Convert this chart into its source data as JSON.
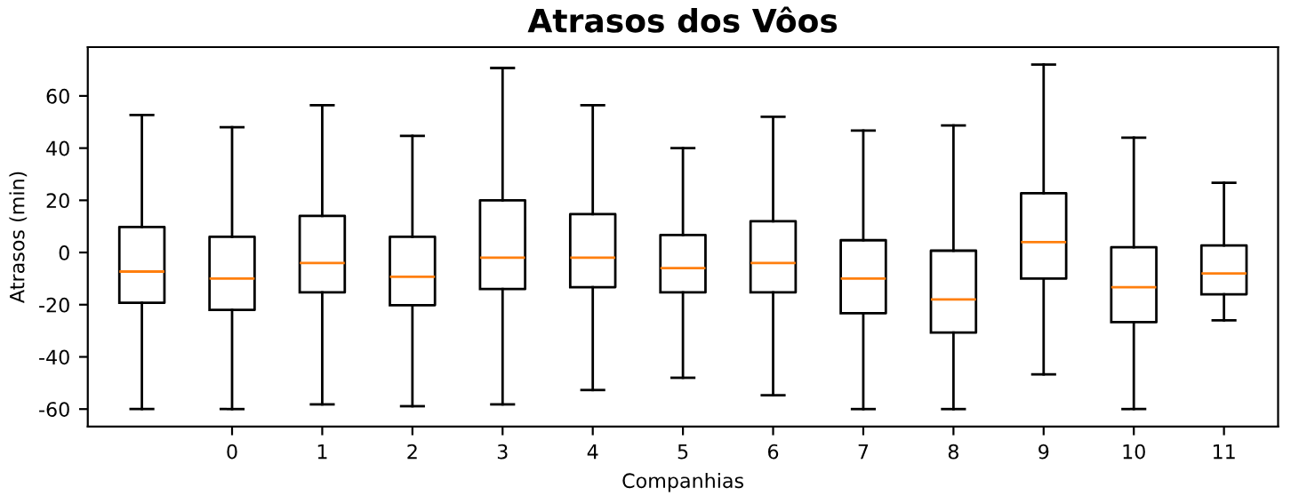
{
  "chart_data": {
    "type": "box",
    "title": "Atrasos dos Vôos",
    "xlabel": "Companhias",
    "ylabel": "Atrasos (min)",
    "categories": [
      null,
      "0",
      "1",
      "2",
      "3",
      "4",
      "5",
      "6",
      "7",
      "8",
      "9",
      "10",
      "11"
    ],
    "boxes": [
      {
        "low": -60,
        "q1": -19.3,
        "median": -7.3,
        "q3": 9.8,
        "high": 52.7
      },
      {
        "low": -60,
        "q1": -22,
        "median": -10,
        "q3": 6,
        "high": 48
      },
      {
        "low": -58.2,
        "q1": -15.3,
        "median": -4,
        "q3": 14,
        "high": 56.4
      },
      {
        "low": -58.9,
        "q1": -20.2,
        "median": -9.3,
        "q3": 6,
        "high": 44.7
      },
      {
        "low": -58.2,
        "q1": -14,
        "median": -2,
        "q3": 20,
        "high": 70.7
      },
      {
        "low": -52.7,
        "q1": -13.3,
        "median": -2,
        "q3": 14.7,
        "high": 56.4
      },
      {
        "low": -48,
        "q1": -15.3,
        "median": -6,
        "q3": 6.7,
        "high": 40
      },
      {
        "low": -54.7,
        "q1": -15.3,
        "median": -4,
        "q3": 12,
        "high": 52
      },
      {
        "low": -60,
        "q1": -23.3,
        "median": -10,
        "q3": 4.7,
        "high": 46.7
      },
      {
        "low": -60,
        "q1": -30.7,
        "median": -18,
        "q3": 0.7,
        "high": 48.7
      },
      {
        "low": -46.7,
        "q1": -10,
        "median": 4,
        "q3": 22.7,
        "high": 72
      },
      {
        "low": -60,
        "q1": -26.7,
        "median": -13.3,
        "q3": 2,
        "high": 44
      },
      {
        "low": -26,
        "q1": -16,
        "median": -8,
        "q3": 2.7,
        "high": 26.7
      }
    ],
    "ylim": [
      -66.7,
      78.7
    ],
    "yticks": [
      -60,
      -40,
      -20,
      0,
      20,
      40,
      60
    ],
    "grid": false,
    "legend": false
  }
}
